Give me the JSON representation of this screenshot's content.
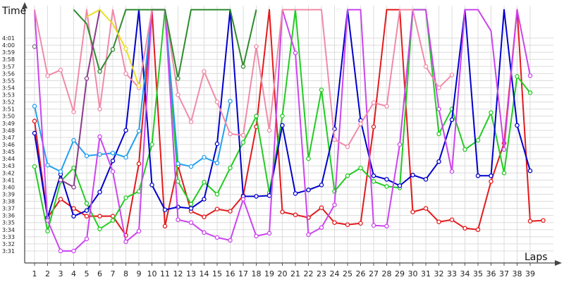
{
  "chart_data": {
    "type": "line",
    "title": "",
    "ylabel": "Time",
    "xlabel": "Laps",
    "grid": true,
    "ylim_seconds": [
      210,
      242
    ],
    "y_ticks": [
      "3:31",
      "3:32",
      "3:33",
      "3:34",
      "3:35",
      "3:36",
      "3:37",
      "3:38",
      "3:39",
      "3:40",
      "3:41",
      "3:42",
      "3:43",
      "3:44",
      "3:45",
      "3:46",
      "3:47",
      "3:48",
      "3:49",
      "3:50",
      "3:51",
      "3:52",
      "3:53",
      "3:54",
      "3:55",
      "3:56",
      "3:57",
      "3:58",
      "3:59",
      "4:00",
      "4:01"
    ],
    "x_ticks": [
      "1",
      "2",
      "3",
      "4",
      "5",
      "6",
      "7",
      "8",
      "9",
      "10",
      "11",
      "12",
      "13",
      "14",
      "15",
      "16",
      "17",
      "18",
      "19",
      "20",
      "21",
      "22",
      "23",
      "24",
      "25",
      "26",
      "27",
      "28",
      "29",
      "30",
      "31",
      "32",
      "33",
      "34",
      "35",
      "36",
      "37",
      "38",
      "39"
    ],
    "series": [
      {
        "color": "#e41a1c",
        "values": [
          229.3,
          215.7,
          218.3,
          217.0,
          215.9,
          215.9,
          215.9,
          213.2,
          223.3,
          245.0,
          214.5,
          223.0,
          216.6,
          215.8,
          216.9,
          216.6,
          218.8,
          228.5,
          245.0,
          216.5,
          216.1,
          215.7,
          217.1,
          215.0,
          214.7,
          214.9,
          228.5,
          245.0,
          245.0,
          216.5,
          217.0,
          215.1,
          215.4,
          214.2,
          214.0,
          220.8,
          226.2,
          245.0,
          215.2,
          215.3
        ]
      },
      {
        "color": "#22cc22",
        "values": [
          222.9,
          213.8,
          220.8,
          222.7,
          217.7,
          214.1,
          215.3,
          218.5,
          219.4,
          226.0,
          245.0,
          220.8,
          217.6,
          220.7,
          219.0,
          222.7,
          226.3,
          230.0,
          219.2,
          230.0,
          245.0,
          224.0,
          233.7,
          219.4,
          221.6,
          222.7,
          220.8,
          220.1,
          219.9,
          245.0,
          245.0,
          227.5,
          231.0,
          225.3,
          226.6,
          230.5,
          222.0,
          235.6,
          233.3
        ]
      },
      {
        "color": "#0000cc",
        "values": [
          227.6,
          215.7,
          221.8,
          215.9,
          216.7,
          219.3,
          223.7,
          228.0,
          245.0,
          220.3,
          216.8,
          217.2,
          217.0,
          218.3,
          226.1,
          245.0,
          218.7,
          218.7,
          218.8,
          228.7,
          219.1,
          219.6,
          220.3,
          228.2,
          245.0,
          229.4,
          221.6,
          221.1,
          220.2,
          221.7,
          221.1,
          223.6,
          229.5,
          245.0,
          221.6,
          221.6,
          245.0,
          228.7,
          222.3
        ]
      },
      {
        "color": "#22a0ee",
        "values": [
          231.4,
          223.1,
          222.2,
          226.6,
          224.4,
          224.6,
          224.8,
          224.2,
          227.9,
          245.0,
          245.0,
          223.3,
          222.9,
          224.2,
          223.4,
          232.1
        ]
      },
      {
        "color": "#cc44ee",
        "values": [
          245.0,
          215.3,
          211.0,
          211.0,
          212.7,
          227.1,
          222.2,
          212.3,
          213.8,
          245.0,
          245.0,
          215.4,
          215.0,
          213.6,
          212.9,
          212.5,
          218.3,
          213.1,
          213.5,
          245.0,
          238.9,
          213.3,
          214.3,
          217.5,
          245.0,
          245.0,
          214.6,
          214.5,
          226.0,
          245.0,
          245.0,
          231.0,
          222.2,
          245.0,
          245.0,
          242.0,
          225.3,
          245.0,
          235.7
        ]
      },
      {
        "color": "#f08aa8",
        "values": [
          245.0,
          235.7,
          236.5,
          230.6,
          245.0,
          231.0,
          245.0,
          236.0,
          234.0,
          245.0,
          245.0,
          233.0,
          229.2,
          236.3,
          232.0,
          227.5,
          227.3,
          239.8,
          228.0,
          245.0,
          245.0,
          245.0,
          245.0,
          226.7,
          225.7,
          228.9,
          231.9,
          231.4,
          245.0,
          245.0,
          237.0,
          234.0,
          235.8
        ]
      },
      {
        "color": "#2e8b2e",
        "values": [
          null,
          null,
          null,
          245.0,
          243.0,
          236.3,
          239.4,
          245.0,
          245.0,
          245.0,
          245.0,
          235.3,
          245.0,
          null,
          null,
          245.0,
          237.0,
          245.0
        ]
      },
      {
        "color": "#8b3a8b",
        "values": [
          null,
          null,
          221.0,
          220.0,
          235.3,
          245.0
        ]
      },
      {
        "color": "#e8e020",
        "values": [
          null,
          null,
          null,
          null,
          244.0,
          245.0,
          243.0,
          239.5,
          234.3
        ]
      },
      {
        "color": "#777777",
        "values": [
          239.8
        ]
      }
    ]
  }
}
